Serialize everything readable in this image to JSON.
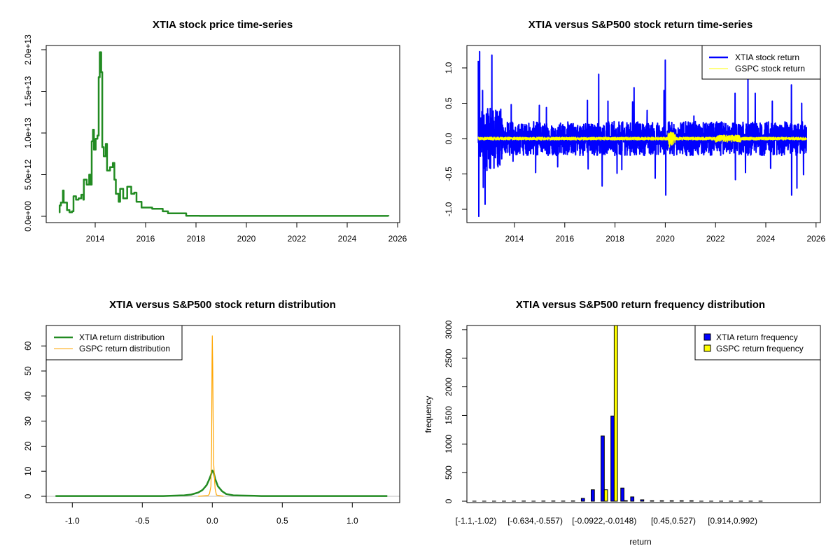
{
  "colors": {
    "xtia_price": "#228B22",
    "xtia_return": "#0000FF",
    "gspc_return": "#FFFF00",
    "xtia_density": "#228B22",
    "gspc_density": "#FFA500",
    "baseline": "#BEBEBE",
    "xtia_bar": "#0000FF",
    "gspc_bar": "#FFFF00"
  },
  "chart_data": [
    {
      "type": "line",
      "title": "XTIA stock price time-series",
      "xlabel": "",
      "ylabel": "",
      "xlim": [
        2012.2,
        2026.2
      ],
      "ylim": [
        -800000000000.0,
        20400000000000.0
      ],
      "xticks": [
        2014,
        2016,
        2018,
        2020,
        2022,
        2024,
        2026
      ],
      "xtick_labels": [
        "2014",
        "2016",
        "2018",
        "2020",
        "2022",
        "2024",
        "2026"
      ],
      "yticks": [
        0,
        5000000000000.0,
        10000000000000.0,
        15000000000000.0,
        20000000000000.0
      ],
      "ytick_labels": [
        "0.0e+00",
        "5.0e+12",
        "1.0e+13",
        "1.5e+13",
        "2.0e+13"
      ],
      "series": [
        {
          "name": "XTIA price",
          "unit": "1e12",
          "x": [
            2012.56,
            2012.59,
            2012.64,
            2012.72,
            2012.75,
            2012.82,
            2012.88,
            2012.98,
            2013.08,
            2013.14,
            2013.24,
            2013.34,
            2013.45,
            2013.53,
            2013.55,
            2013.66,
            2013.76,
            2013.81,
            2013.86,
            2013.91,
            2013.95,
            2014.02,
            2014.09,
            2014.14,
            2014.18,
            2014.22,
            2014.24,
            2014.28,
            2014.34,
            2014.42,
            2014.47,
            2014.59,
            2014.7,
            2014.76,
            2014.82,
            2014.93,
            2014.99,
            2015.11,
            2015.27,
            2015.43,
            2015.55,
            2015.64,
            2015.84,
            2016.26,
            2016.68,
            2016.89,
            2017.3,
            2017.61,
            2018.14,
            2025.64
          ],
          "y": [
            0.48,
            1.3,
            1.65,
            3.1,
            1.65,
            1.65,
            0.75,
            0.48,
            0.6,
            2.4,
            2.0,
            2.15,
            2.6,
            2.0,
            4.4,
            3.8,
            5.0,
            3.8,
            9.0,
            10.4,
            8.0,
            9.3,
            9.7,
            16.7,
            19.7,
            19.7,
            17.3,
            8.3,
            7.2,
            8.7,
            5.5,
            5.9,
            6.4,
            4.4,
            2.7,
            1.75,
            3.3,
            2.15,
            3.55,
            2.7,
            2.85,
            1.75,
            1.05,
            0.9,
            0.6,
            0.35,
            0.35,
            0.06,
            0.05,
            0.0
          ]
        }
      ]
    },
    {
      "type": "line",
      "title": "XTIA versus S&P500 stock return time-series",
      "xlim": [
        2012.2,
        2026.2
      ],
      "ylim": [
        -1.2,
        1.3
      ],
      "xticks": [
        2014,
        2016,
        2018,
        2020,
        2022,
        2024,
        2026
      ],
      "xtick_labels": [
        "2014",
        "2016",
        "2018",
        "2020",
        "2022",
        "2024",
        "2026"
      ],
      "yticks": [
        -1.0,
        -0.5,
        0.0,
        0.5,
        1.0
      ],
      "ytick_labels": [
        "-1.0",
        "-0.5",
        "0.0",
        "0.5",
        "1.0"
      ],
      "legend": {
        "position": "top-right",
        "entries": [
          "XTIA stock return",
          "GSPC stock return"
        ]
      },
      "date_range": [
        2012.56,
        2025.62
      ],
      "series": [
        {
          "name": "XTIA stock return",
          "typical_abs_return": 0.08,
          "spikes_x": [
            2012.56,
            2012.58,
            2012.61,
            2012.73,
            2012.76,
            2012.83,
            2012.9,
            2012.95,
            2013.1,
            2013.15,
            2013.32,
            2013.34,
            2013.87,
            2013.94,
            2014.84,
            2014.99,
            2015.27,
            2015.72,
            2016.9,
            2016.93,
            2017.35,
            2017.49,
            2017.72,
            2018.08,
            2018.27,
            2018.7,
            2018.76,
            2019.28,
            2019.6,
            2019.95,
            2020.0,
            2020.02,
            2021.14,
            2022.78,
            2022.79,
            2023.19,
            2023.29,
            2023.58,
            2024.19,
            2024.26,
            2025.02,
            2025.03,
            2025.24,
            2025.43,
            2025.5
          ],
          "spikes_y": [
            1.1,
            -1.1,
            1.23,
            0.68,
            -0.69,
            -0.93,
            -0.45,
            0.35,
            1.18,
            0.39,
            0.38,
            -0.4,
            0.48,
            -0.32,
            -0.48,
            0.47,
            0.44,
            -0.4,
            0.54,
            -0.43,
            0.91,
            -0.67,
            0.53,
            -0.49,
            -0.44,
            0.52,
            0.72,
            0.4,
            -0.56,
            0.68,
            1.11,
            -0.8,
            0.32,
            0.64,
            -0.58,
            -0.48,
            0.85,
            0.64,
            -0.42,
            0.53,
            0.76,
            -0.8,
            -0.7,
            0.5,
            -0.51
          ]
        },
        {
          "name": "GSPC stock return",
          "typical_abs_return": 0.01,
          "spikes_x": [
            2020.17,
            2020.2,
            2020.23
          ],
          "spikes_y": [
            -0.12,
            0.09,
            -0.06
          ]
        }
      ]
    },
    {
      "type": "line",
      "title": "XTIA versus S&P500 stock return distribution",
      "xlim": [
        -1.2,
        1.32
      ],
      "ylim": [
        -2.5,
        68
      ],
      "xticks": [
        -1.0,
        -0.5,
        0.0,
        0.5,
        1.0
      ],
      "xtick_labels": [
        "-1.0",
        "-0.5",
        "0.0",
        "0.5",
        "1.0"
      ],
      "yticks": [
        0,
        10,
        20,
        30,
        40,
        50,
        60
      ],
      "ytick_labels": [
        "0",
        "10",
        "20",
        "30",
        "40",
        "50",
        "60"
      ],
      "legend": {
        "position": "top-left",
        "entries": [
          "XTIA return distribution",
          "GSPC return distribution"
        ]
      },
      "series": [
        {
          "name": "XTIA return distribution",
          "x": [
            -1.12,
            -0.35,
            -0.3,
            -0.2,
            -0.15,
            -0.1,
            -0.07,
            -0.04,
            -0.02,
            -0.01,
            0,
            0.01,
            0.02,
            0.04,
            0.07,
            0.1,
            0.15,
            0.2,
            0.3,
            0.35,
            1.25
          ],
          "y": [
            0.1,
            0.1,
            0.2,
            0.4,
            0.7,
            1.5,
            2.5,
            4.5,
            7,
            8.5,
            10.3,
            9.5,
            7,
            4,
            2,
            0.9,
            0.4,
            0.3,
            0.2,
            0.1,
            0.1
          ]
        },
        {
          "name": "GSPC return distribution",
          "x": [
            -0.1,
            -0.03,
            -0.02,
            -0.01,
            -0.005,
            -0.002,
            0,
            0.003,
            0.006,
            0.01,
            0.02,
            0.03,
            0.06,
            0.08
          ],
          "y": [
            0,
            0.3,
            1,
            4,
            20,
            54,
            64,
            52,
            30,
            13,
            3,
            0.5,
            0.2,
            0
          ]
        }
      ]
    },
    {
      "type": "bar",
      "title": "XTIA versus S&P500 return frequency distribution",
      "xlabel": "return",
      "ylabel": "frequency",
      "ylim": [
        0,
        3060
      ],
      "yticks": [
        0,
        500,
        1000,
        1500,
        2000,
        2500,
        3000
      ],
      "ytick_labels": [
        "0",
        "500",
        "1000",
        "1500",
        "2000",
        "2500",
        "3000"
      ],
      "xtick_bins": [
        0,
        6,
        13,
        20,
        26
      ],
      "xtick_labels": [
        "[-1.1,-1.02)",
        "[-0.634,-0.557)",
        "[-0.0922,-0.0148)",
        "[0.45,0.527)",
        "[0.914,0.992)"
      ],
      "legend": {
        "position": "top-right",
        "entries": [
          "XTIA return frequency",
          "GSPC return frequency"
        ]
      },
      "series": [
        {
          "name": "XTIA return frequency",
          "values": [
            1,
            1,
            1,
            1,
            1,
            3,
            1,
            3,
            4,
            3,
            5,
            50,
            200,
            1140,
            1490,
            230,
            75,
            25,
            8,
            8,
            8,
            8,
            8,
            1,
            1,
            1,
            1,
            1,
            1,
            1
          ]
        },
        {
          "name": "GSPC return frequency",
          "values": [
            0,
            0,
            0,
            0,
            0,
            0,
            0,
            0,
            0,
            0,
            0,
            0,
            0,
            200,
            3080,
            10,
            0,
            0,
            0,
            0,
            0,
            0,
            0,
            0,
            0,
            0,
            0,
            0,
            0,
            0
          ]
        }
      ]
    }
  ]
}
